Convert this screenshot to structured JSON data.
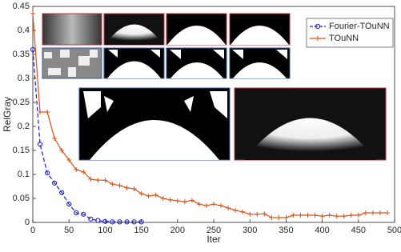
{
  "chart_data": {
    "type": "line",
    "xlabel": "Iter",
    "ylabel": "RelGray",
    "xlim": [
      0,
      500
    ],
    "xticks": [
      0,
      50,
      100,
      150,
      200,
      250,
      300,
      350,
      400,
      450,
      500
    ],
    "ylim": [
      0,
      0.45
    ],
    "yticks": [
      0,
      0.05,
      0.1,
      0.15,
      0.2,
      0.25,
      0.3,
      0.35,
      0.4,
      0.45
    ],
    "legend": "upper right",
    "series": [
      {
        "name": "Fourier-TOuNN",
        "color": "#1a1acc",
        "marker": "circle",
        "dashed": true,
        "x": [
          0,
          10,
          20,
          30,
          40,
          50,
          60,
          70,
          80,
          90,
          100,
          110,
          120,
          130,
          140,
          150
        ],
        "values": [
          0.36,
          0.163,
          0.103,
          0.082,
          0.062,
          0.038,
          0.02,
          0.017,
          0.007,
          0.004,
          0.002,
          0.001,
          0.001,
          0.001,
          0.001,
          0.001
        ]
      },
      {
        "name": "TOuNN",
        "color": "#d95319",
        "marker": "plus",
        "dashed": false,
        "x": [
          0,
          10,
          20,
          30,
          40,
          50,
          60,
          70,
          80,
          90,
          100,
          110,
          120,
          130,
          140,
          150,
          160,
          170,
          180,
          190,
          200,
          210,
          220,
          230,
          240,
          250,
          260,
          270,
          280,
          290,
          300,
          310,
          320,
          330,
          340,
          350,
          360,
          370,
          380,
          390,
          400,
          410,
          420,
          430,
          440,
          450,
          460,
          470,
          480,
          490
        ],
        "values": [
          0.435,
          0.23,
          0.23,
          0.175,
          0.15,
          0.13,
          0.11,
          0.105,
          0.09,
          0.088,
          0.088,
          0.08,
          0.077,
          0.072,
          0.07,
          0.06,
          0.055,
          0.057,
          0.05,
          0.047,
          0.045,
          0.043,
          0.046,
          0.038,
          0.035,
          0.038,
          0.035,
          0.03,
          0.025,
          0.022,
          0.017,
          0.017,
          0.018,
          0.01,
          0.01,
          0.01,
          0.015,
          0.015,
          0.015,
          0.015,
          0.013,
          0.015,
          0.013,
          0.013,
          0.015,
          0.015,
          0.02,
          0.02,
          0.02,
          0.02
        ]
      }
    ]
  }
}
